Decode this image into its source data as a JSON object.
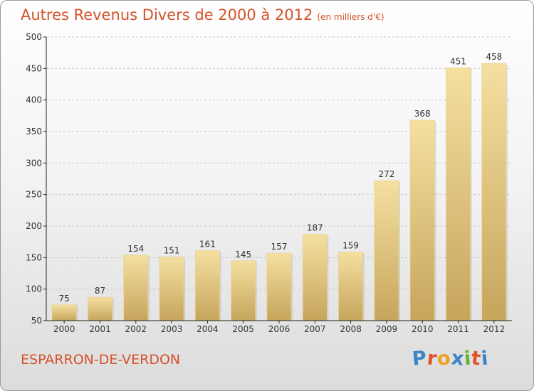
{
  "header": {
    "title": "Autres Revenus Divers de 2000 à 2012",
    "subtitle": "(en milliers d'€)"
  },
  "footer": {
    "commune": "ESPARRON-DE-VERDON",
    "logo": {
      "letters": [
        "P",
        "r",
        "o",
        "x",
        "i",
        "t",
        "i"
      ],
      "colors": [
        "#3a84c8",
        "#e0522b",
        "#f0a020",
        "#3a84c8",
        "#66b033",
        "#e0522b",
        "#3a84c8"
      ]
    }
  },
  "colors": {
    "title": "#d4522a",
    "bar_light": "#f5e0a0",
    "bar_dark": "#c6a55c",
    "axis": "#222222",
    "grid": "#c8c8c8"
  },
  "chart_data": {
    "type": "bar",
    "categories": [
      "2000",
      "2001",
      "2002",
      "2003",
      "2004",
      "2005",
      "2006",
      "2007",
      "2008",
      "2009",
      "2010",
      "2011",
      "2012"
    ],
    "values": [
      75,
      87,
      154,
      151,
      161,
      145,
      157,
      187,
      159,
      272,
      368,
      451,
      458
    ],
    "ylim": [
      50,
      500
    ],
    "yticks": [
      50,
      100,
      150,
      200,
      250,
      300,
      350,
      400,
      450,
      500
    ],
    "grid": true,
    "title": "Autres Revenus Divers de 2000 à 2012",
    "xlabel": "",
    "ylabel": ""
  }
}
